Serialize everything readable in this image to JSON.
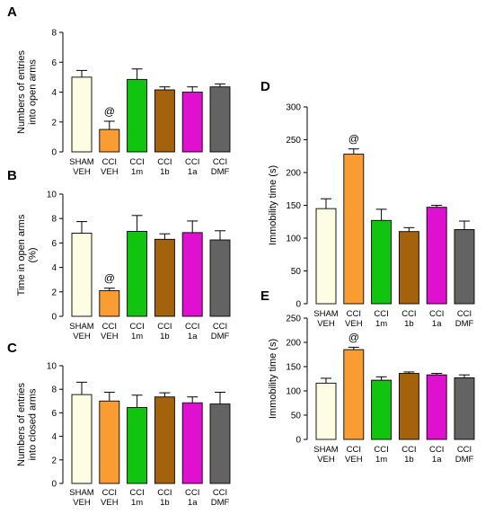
{
  "palette": [
    "#fdfde3",
    "#f99d33",
    "#10c410",
    "#a3620b",
    "#e010d0",
    "#636363"
  ],
  "chart_data": [
    {
      "panel": "A",
      "type": "bar",
      "categories": [
        [
          "SHAM",
          "VEH"
        ],
        [
          "CCI",
          "VEH"
        ],
        [
          "CCI",
          "1m"
        ],
        [
          "CCI",
          "1b"
        ],
        [
          "CCI",
          "1a"
        ],
        [
          "CCI",
          "DMF"
        ]
      ],
      "values": [
        5.0,
        1.5,
        4.85,
        4.15,
        4.0,
        4.35
      ],
      "errors": [
        0.45,
        0.55,
        0.7,
        0.2,
        0.35,
        0.2
      ],
      "ylabel": [
        "Numbers of entries",
        "into open arms"
      ],
      "ylim": [
        0,
        8
      ],
      "yticks": [
        0,
        2,
        4,
        6,
        8
      ],
      "annotations": [
        {
          "index": 1,
          "text": "@"
        }
      ]
    },
    {
      "panel": "B",
      "type": "bar",
      "categories": [
        [
          "SHAM",
          "VEH"
        ],
        [
          "CCI",
          "VEH"
        ],
        [
          "CCI",
          "1m"
        ],
        [
          "CCI",
          "1b"
        ],
        [
          "CCI",
          "1a"
        ],
        [
          "CCI",
          "DMF"
        ]
      ],
      "values": [
        6.8,
        2.1,
        6.95,
        6.3,
        6.85,
        6.25
      ],
      "errors": [
        0.95,
        0.2,
        1.3,
        0.45,
        0.95,
        0.75
      ],
      "ylabel": [
        "Time in open arms",
        "(%)"
      ],
      "ylim": [
        0,
        10
      ],
      "yticks": [
        0,
        2,
        4,
        6,
        8,
        10
      ],
      "annotations": [
        {
          "index": 1,
          "text": "@"
        }
      ]
    },
    {
      "panel": "C",
      "type": "bar",
      "categories": [
        [
          "SHAM",
          "VEH"
        ],
        [
          "CCI",
          "VEH"
        ],
        [
          "CCI",
          "1m"
        ],
        [
          "CCI",
          "1b"
        ],
        [
          "CCI",
          "1a"
        ],
        [
          "CCI",
          "DMF"
        ]
      ],
      "values": [
        7.55,
        7.0,
        6.45,
        7.35,
        6.85,
        6.75
      ],
      "errors": [
        1.05,
        0.75,
        1.05,
        0.35,
        0.5,
        1.0
      ],
      "ylabel": [
        "Numbers of entries",
        "into closed arms"
      ],
      "ylim": [
        0,
        10
      ],
      "yticks": [
        0,
        2,
        4,
        6,
        8,
        10
      ],
      "annotations": []
    },
    {
      "panel": "D",
      "type": "bar",
      "categories": [
        [
          "SHAM",
          "VEH"
        ],
        [
          "CCI",
          "VEH"
        ],
        [
          "CCI",
          "1m"
        ],
        [
          "CCI",
          "1b"
        ],
        [
          "CCI",
          "1a"
        ],
        [
          "CCI",
          "DMF"
        ]
      ],
      "values": [
        145,
        228,
        127,
        110,
        147,
        113
      ],
      "errors": [
        15,
        8,
        17,
        6,
        3,
        13
      ],
      "ylabel": [
        "Immobility time (s)"
      ],
      "ylim": [
        0,
        300
      ],
      "yticks": [
        0,
        50,
        100,
        150,
        200,
        250,
        300
      ],
      "annotations": [
        {
          "index": 1,
          "text": "@"
        }
      ]
    },
    {
      "panel": "E",
      "type": "bar",
      "categories": [
        [
          "SHAM",
          "VEH"
        ],
        [
          "CCI",
          "VEH"
        ],
        [
          "CCI",
          "1m"
        ],
        [
          "CCI",
          "1b"
        ],
        [
          "CCI",
          "1a"
        ],
        [
          "CCI",
          "DMF"
        ]
      ],
      "values": [
        116,
        185,
        122,
        136,
        133,
        127
      ],
      "errors": [
        10,
        5,
        7,
        3,
        3,
        6
      ],
      "ylabel": [
        "Immobility time (s)"
      ],
      "ylim": [
        0,
        250
      ],
      "yticks": [
        0,
        50,
        100,
        150,
        200,
        250
      ],
      "annotations": [
        {
          "index": 1,
          "text": "@"
        }
      ]
    }
  ]
}
